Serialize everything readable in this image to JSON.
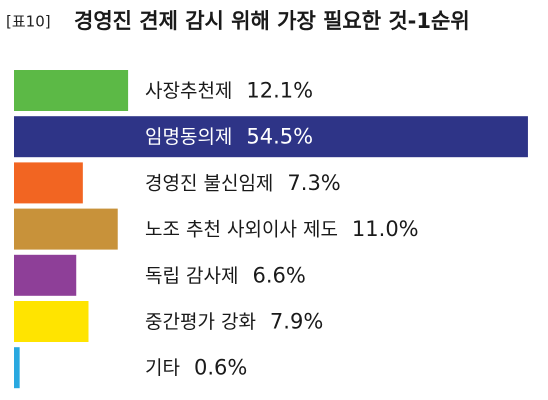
{
  "chart_data": {
    "type": "bar",
    "orientation": "horizontal",
    "table_label": "[표10]",
    "title": "경영진 견제 감시 위해 가장 필요한 것-1순위",
    "categories": [
      "사장추천제",
      "임명동의제",
      "경영진 불신임제",
      "노조 추천 사외이사 제도",
      "독립 감사제",
      "중간평가 강화",
      "기타"
    ],
    "values": [
      12.1,
      54.5,
      7.3,
      11.0,
      6.6,
      7.9,
      0.6
    ],
    "value_labels": [
      "12.1%",
      "54.5%",
      "7.3%",
      "11.0%",
      "6.6%",
      "7.9%",
      "0.6%"
    ],
    "colors": [
      "#5cb946",
      "#2e3487",
      "#f26522",
      "#c8923a",
      "#8e3f98",
      "#ffe400",
      "#29a8e0"
    ]
  }
}
